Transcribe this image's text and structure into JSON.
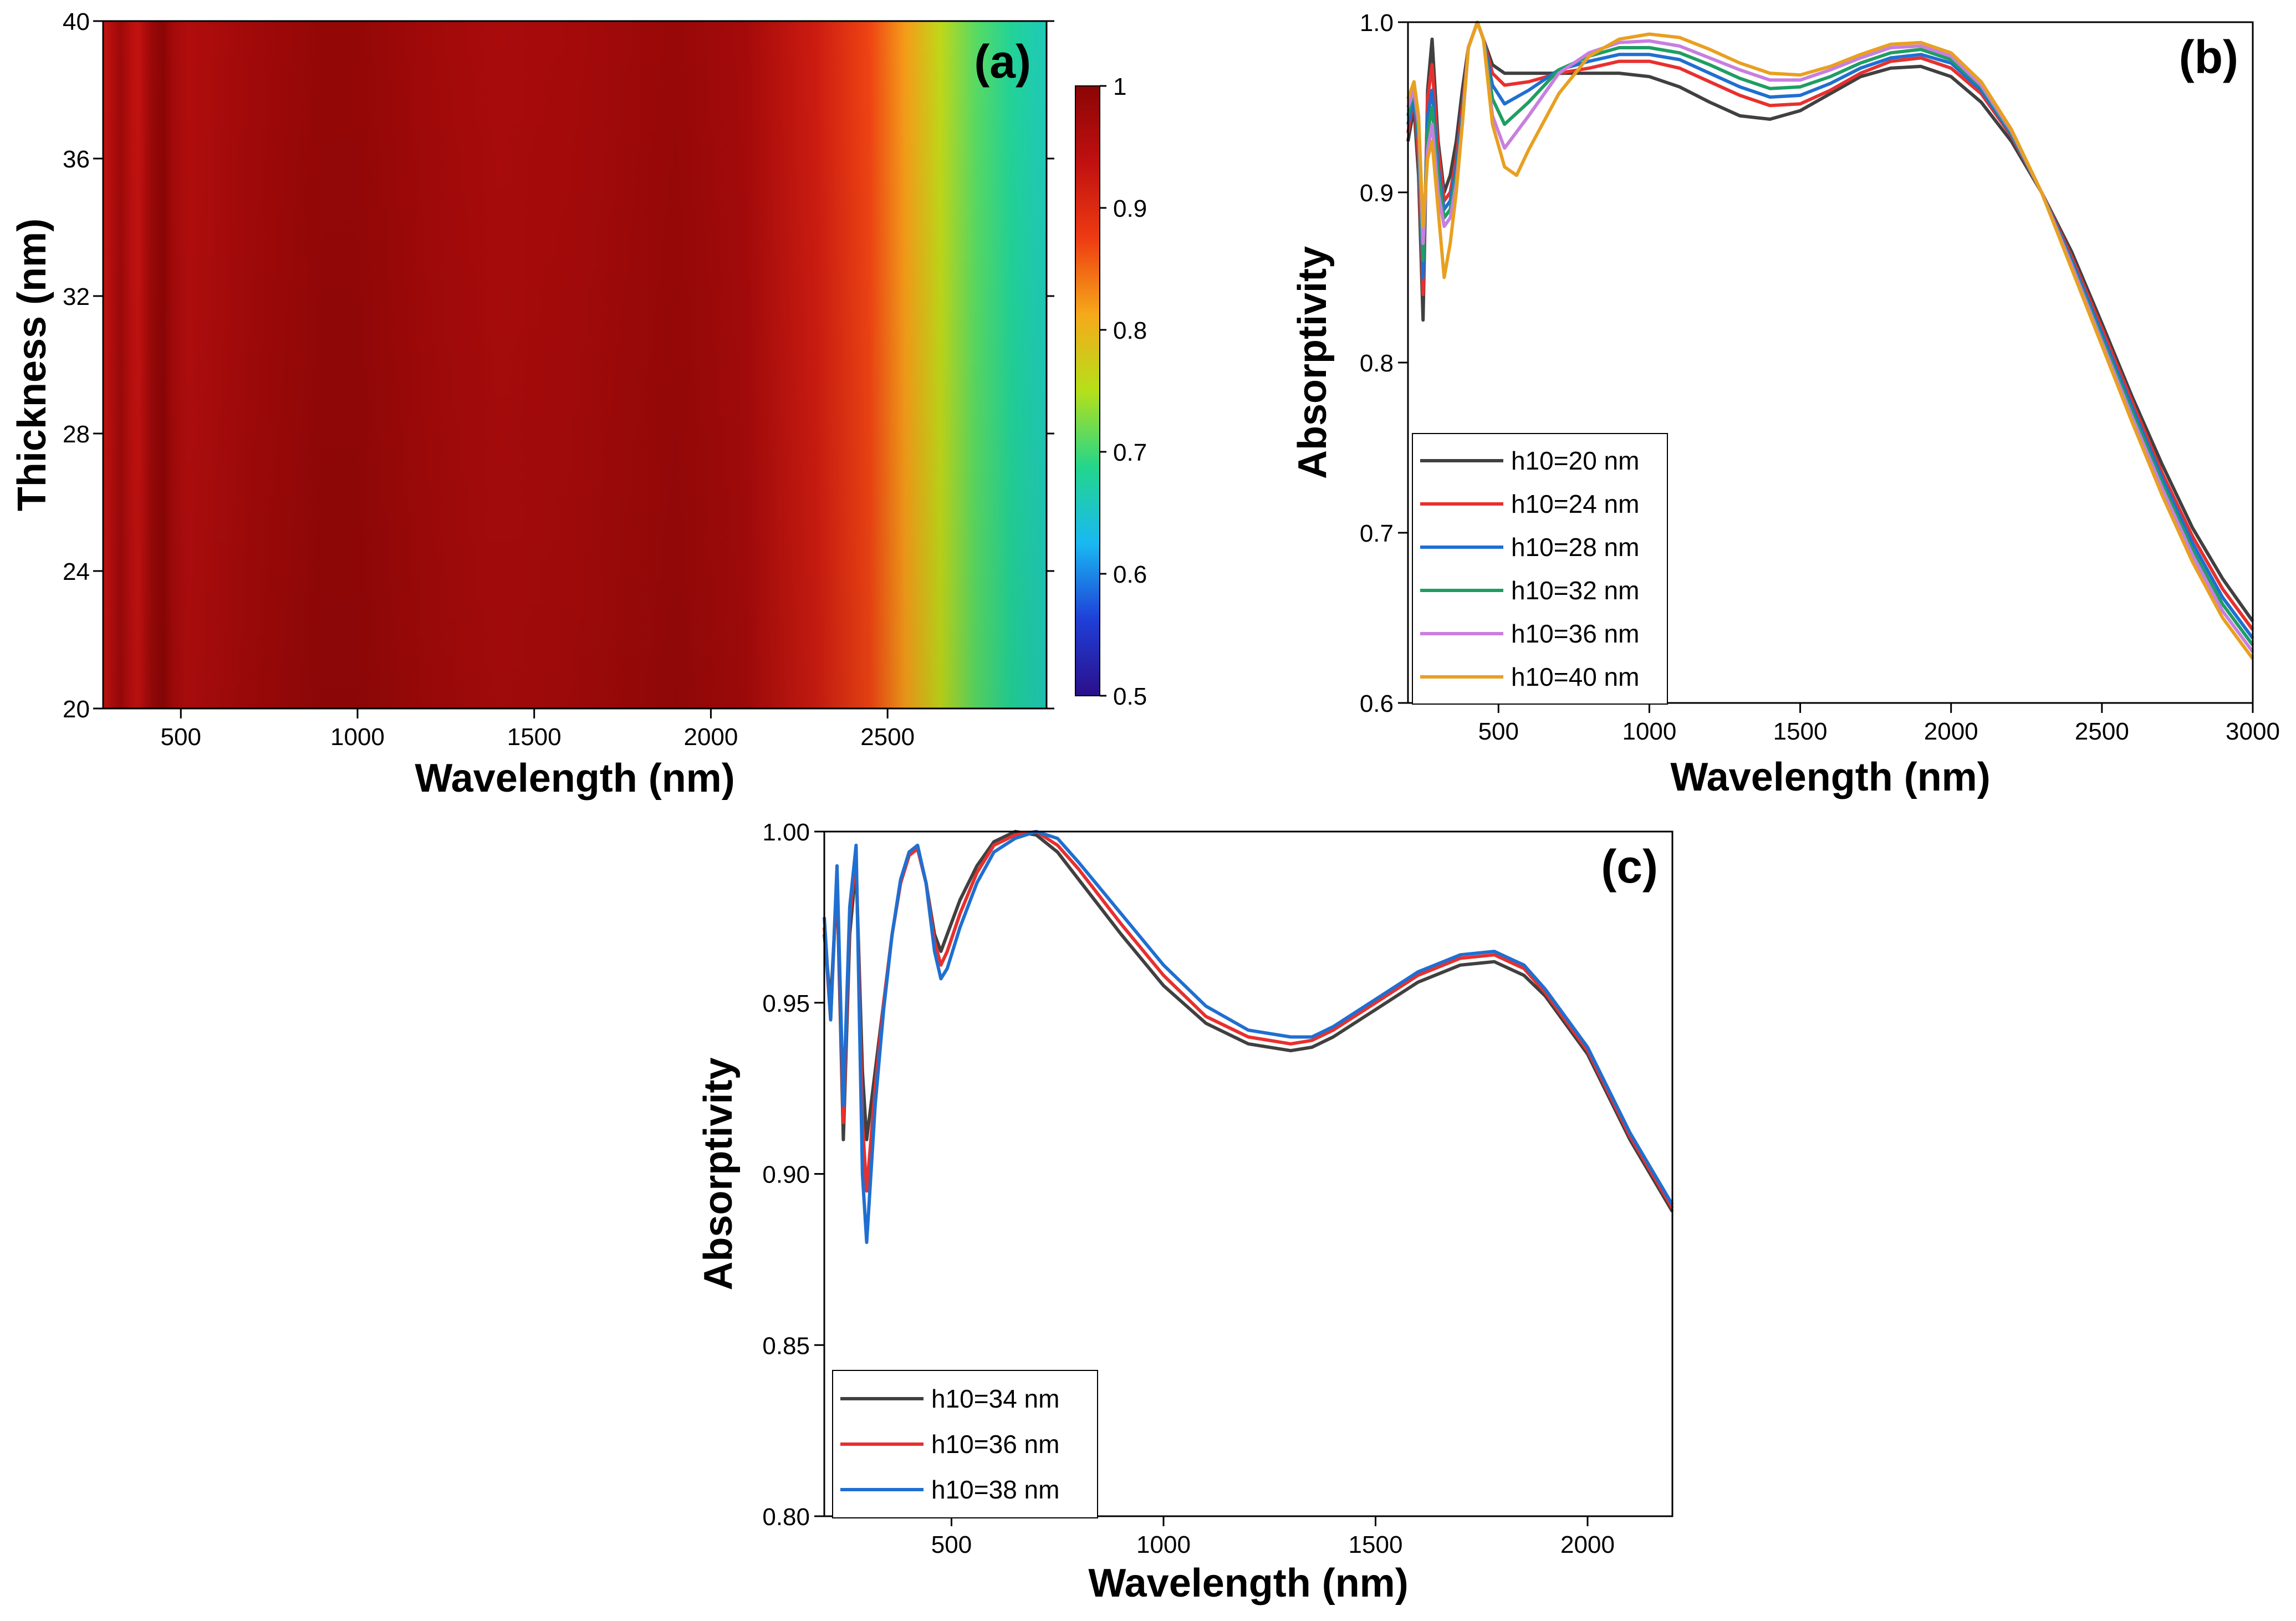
{
  "chart_data": [
    {
      "id": "a",
      "type": "heatmap",
      "panel_label": "(a)",
      "xlabel": "Wavelength (nm)",
      "ylabel": "Thickness (nm)",
      "xlim": [
        280,
        2950
      ],
      "ylim": [
        20,
        40
      ],
      "xticks": [
        500,
        1000,
        1500,
        2000,
        2500
      ],
      "yticks": [
        20,
        24,
        28,
        32,
        36,
        40
      ],
      "colorbar": {
        "range": [
          0.5,
          1
        ],
        "ticks": [
          0.5,
          0.6,
          0.7,
          0.8,
          0.9,
          1
        ],
        "tick_labels": [
          "0.5",
          "0.6",
          "0.7",
          "0.8",
          "0.9",
          "1"
        ],
        "stops": [
          "#2b0f8a",
          "#1f3fd8",
          "#19b9f2",
          "#23d68c",
          "#b6e019",
          "#f6a91a",
          "#ee3b12",
          "#c01010",
          "#8c0505"
        ]
      },
      "profile": [
        {
          "x": 280,
          "v": 0.93
        },
        {
          "x": 300,
          "v": 0.95
        },
        {
          "x": 330,
          "v": 0.98
        },
        {
          "x": 360,
          "v": 0.945
        },
        {
          "x": 380,
          "v": 0.935
        },
        {
          "x": 400,
          "v": 0.96
        },
        {
          "x": 420,
          "v": 0.985
        },
        {
          "x": 450,
          "v": 1.0
        },
        {
          "x": 480,
          "v": 0.97
        },
        {
          "x": 520,
          "v": 0.955
        },
        {
          "x": 700,
          "v": 0.975
        },
        {
          "x": 900,
          "v": 0.99
        },
        {
          "x": 1000,
          "v": 0.99
        },
        {
          "x": 1200,
          "v": 0.975
        },
        {
          "x": 1400,
          "v": 0.965
        },
        {
          "x": 1600,
          "v": 0.97
        },
        {
          "x": 1900,
          "v": 0.985
        },
        {
          "x": 2100,
          "v": 0.97
        },
        {
          "x": 2300,
          "v": 0.92
        },
        {
          "x": 2450,
          "v": 0.87
        },
        {
          "x": 2550,
          "v": 0.82
        },
        {
          "x": 2650,
          "v": 0.76
        },
        {
          "x": 2750,
          "v": 0.71
        },
        {
          "x": 2850,
          "v": 0.68
        },
        {
          "x": 2950,
          "v": 0.66
        }
      ]
    },
    {
      "id": "b",
      "type": "line",
      "panel_label": "(b)",
      "xlabel": "Wavelength (nm)",
      "ylabel": "Absorptivity",
      "xlim": [
        200,
        3000
      ],
      "ylim": [
        0.6,
        1.0
      ],
      "xticks": [
        500,
        1000,
        1500,
        2000,
        2500,
        3000
      ],
      "yticks": [
        0.6,
        0.7,
        0.8,
        0.9,
        1.0
      ],
      "ytick_labels": [
        "0.6",
        "0.7",
        "0.8",
        "0.9",
        "1.0"
      ],
      "legend_position": "lower-left",
      "series": [
        {
          "name": "h10=20 nm",
          "color": "#404040",
          "x": [
            200,
            220,
            235,
            250,
            265,
            280,
            300,
            320,
            340,
            360,
            380,
            400,
            430,
            450,
            480,
            520,
            600,
            700,
            800,
            900,
            1000,
            1100,
            1200,
            1300,
            1400,
            1500,
            1600,
            1700,
            1800,
            1900,
            2000,
            2100,
            2200,
            2300,
            2400,
            2500,
            2600,
            2700,
            2800,
            2900,
            3000
          ],
          "y": [
            0.93,
            0.95,
            0.91,
            0.825,
            0.96,
            0.99,
            0.93,
            0.9,
            0.91,
            0.93,
            0.96,
            0.985,
            1.0,
            0.99,
            0.975,
            0.97,
            0.97,
            0.97,
            0.97,
            0.97,
            0.968,
            0.962,
            0.953,
            0.945,
            0.943,
            0.948,
            0.958,
            0.968,
            0.973,
            0.974,
            0.968,
            0.953,
            0.93,
            0.9,
            0.865,
            0.823,
            0.78,
            0.74,
            0.703,
            0.673,
            0.648
          ]
        },
        {
          "name": "h10=24 nm",
          "color": "#e8302e",
          "x": [
            200,
            220,
            235,
            250,
            265,
            280,
            300,
            320,
            340,
            360,
            380,
            400,
            430,
            450,
            480,
            520,
            600,
            700,
            800,
            900,
            1000,
            1100,
            1200,
            1300,
            1400,
            1500,
            1600,
            1700,
            1800,
            1900,
            2000,
            2100,
            2200,
            2300,
            2400,
            2500,
            2600,
            2700,
            2800,
            2900,
            3000
          ],
          "y": [
            0.935,
            0.955,
            0.92,
            0.84,
            0.955,
            0.975,
            0.925,
            0.895,
            0.9,
            0.92,
            0.95,
            0.985,
            1.0,
            0.99,
            0.97,
            0.963,
            0.965,
            0.97,
            0.973,
            0.977,
            0.977,
            0.973,
            0.965,
            0.957,
            0.951,
            0.952,
            0.96,
            0.97,
            0.977,
            0.979,
            0.973,
            0.958,
            0.933,
            0.9,
            0.862,
            0.82,
            0.777,
            0.735,
            0.698,
            0.667,
            0.643
          ]
        },
        {
          "name": "h10=28 nm",
          "color": "#1f6fd1",
          "x": [
            200,
            220,
            235,
            250,
            265,
            280,
            300,
            320,
            340,
            360,
            380,
            400,
            430,
            450,
            480,
            520,
            600,
            700,
            800,
            900,
            1000,
            1100,
            1200,
            1300,
            1400,
            1500,
            1600,
            1700,
            1800,
            1900,
            2000,
            2100,
            2200,
            2300,
            2400,
            2500,
            2600,
            2700,
            2800,
            2900,
            3000
          ],
          "y": [
            0.94,
            0.955,
            0.93,
            0.85,
            0.945,
            0.96,
            0.915,
            0.89,
            0.895,
            0.915,
            0.945,
            0.985,
            1.0,
            0.99,
            0.963,
            0.952,
            0.96,
            0.972,
            0.977,
            0.981,
            0.981,
            0.978,
            0.97,
            0.962,
            0.956,
            0.957,
            0.964,
            0.973,
            0.979,
            0.981,
            0.976,
            0.96,
            0.934,
            0.9,
            0.86,
            0.817,
            0.774,
            0.732,
            0.694,
            0.662,
            0.638
          ]
        },
        {
          "name": "h10=32 nm",
          "color": "#1f9e62",
          "x": [
            200,
            220,
            235,
            250,
            265,
            280,
            300,
            320,
            340,
            360,
            380,
            400,
            430,
            450,
            480,
            520,
            600,
            700,
            800,
            900,
            1000,
            1100,
            1200,
            1300,
            1400,
            1500,
            1600,
            1700,
            1800,
            1900,
            2000,
            2100,
            2200,
            2300,
            2400,
            2500,
            2600,
            2700,
            2800,
            2900,
            3000
          ],
          "y": [
            0.945,
            0.96,
            0.935,
            0.86,
            0.935,
            0.95,
            0.91,
            0.885,
            0.89,
            0.91,
            0.94,
            0.985,
            1.0,
            0.99,
            0.955,
            0.94,
            0.953,
            0.972,
            0.98,
            0.985,
            0.985,
            0.982,
            0.975,
            0.967,
            0.961,
            0.962,
            0.968,
            0.976,
            0.982,
            0.984,
            0.978,
            0.962,
            0.935,
            0.9,
            0.858,
            0.814,
            0.771,
            0.729,
            0.69,
            0.658,
            0.634
          ]
        },
        {
          "name": "h10=36 nm",
          "color": "#c77fe0",
          "x": [
            200,
            220,
            235,
            250,
            265,
            280,
            300,
            320,
            340,
            360,
            380,
            400,
            430,
            450,
            480,
            520,
            600,
            700,
            800,
            900,
            1000,
            1100,
            1200,
            1300,
            1400,
            1500,
            1600,
            1700,
            1800,
            1900,
            2000,
            2100,
            2200,
            2300,
            2400,
            2500,
            2600,
            2700,
            2800,
            2900,
            3000
          ],
          "y": [
            0.95,
            0.96,
            0.94,
            0.87,
            0.925,
            0.94,
            0.9,
            0.88,
            0.885,
            0.905,
            0.94,
            0.985,
            1.0,
            0.99,
            0.945,
            0.926,
            0.945,
            0.97,
            0.982,
            0.988,
            0.989,
            0.986,
            0.979,
            0.972,
            0.966,
            0.966,
            0.972,
            0.979,
            0.985,
            0.986,
            0.98,
            0.963,
            0.936,
            0.9,
            0.857,
            0.812,
            0.768,
            0.726,
            0.687,
            0.654,
            0.63
          ]
        },
        {
          "name": "h10=40 nm",
          "color": "#e8a020",
          "x": [
            200,
            220,
            235,
            250,
            265,
            280,
            300,
            320,
            340,
            360,
            380,
            400,
            430,
            450,
            480,
            520,
            560,
            600,
            700,
            800,
            900,
            1000,
            1100,
            1200,
            1300,
            1400,
            1500,
            1600,
            1700,
            1800,
            1900,
            2000,
            2100,
            2200,
            2300,
            2400,
            2500,
            2600,
            2700,
            2800,
            2900,
            3000
          ],
          "y": [
            0.955,
            0.965,
            0.945,
            0.88,
            0.92,
            0.93,
            0.89,
            0.85,
            0.87,
            0.9,
            0.94,
            0.985,
            1.0,
            0.99,
            0.94,
            0.915,
            0.91,
            0.925,
            0.958,
            0.98,
            0.99,
            0.993,
            0.991,
            0.984,
            0.976,
            0.97,
            0.969,
            0.974,
            0.981,
            0.987,
            0.988,
            0.982,
            0.965,
            0.937,
            0.9,
            0.855,
            0.81,
            0.765,
            0.722,
            0.683,
            0.65,
            0.626
          ]
        }
      ]
    },
    {
      "id": "c",
      "type": "line",
      "panel_label": "(c)",
      "xlabel": "Wavelength (nm)",
      "ylabel": "Absorptivity",
      "xlim": [
        200,
        2200
      ],
      "ylim": [
        0.8,
        1.0
      ],
      "xticks": [
        500,
        1000,
        1500,
        2000
      ],
      "yticks": [
        0.8,
        0.85,
        0.9,
        0.95,
        1.0
      ],
      "ytick_labels": [
        "0.80",
        "0.85",
        "0.90",
        "0.95",
        "1.00"
      ],
      "legend_position": "lower-left",
      "series": [
        {
          "name": "h10=34 nm",
          "color": "#404040",
          "x": [
            200,
            215,
            230,
            245,
            260,
            275,
            290,
            300,
            320,
            340,
            360,
            380,
            400,
            420,
            440,
            460,
            475,
            490,
            520,
            560,
            600,
            650,
            700,
            750,
            800,
            900,
            1000,
            1100,
            1200,
            1300,
            1350,
            1400,
            1500,
            1600,
            1700,
            1780,
            1850,
            1900,
            2000,
            2100,
            2200
          ],
          "y": [
            0.97,
            0.95,
            0.985,
            0.91,
            0.97,
            0.99,
            0.93,
            0.91,
            0.93,
            0.95,
            0.97,
            0.985,
            0.993,
            0.995,
            0.985,
            0.97,
            0.965,
            0.97,
            0.98,
            0.99,
            0.997,
            1.0,
            0.999,
            0.994,
            0.986,
            0.97,
            0.955,
            0.944,
            0.938,
            0.936,
            0.937,
            0.94,
            0.948,
            0.956,
            0.961,
            0.962,
            0.958,
            0.952,
            0.935,
            0.91,
            0.889
          ]
        },
        {
          "name": "h10=36 nm",
          "color": "#e8302e",
          "x": [
            200,
            215,
            230,
            245,
            260,
            275,
            290,
            300,
            320,
            340,
            360,
            380,
            400,
            420,
            440,
            460,
            475,
            490,
            520,
            560,
            600,
            650,
            700,
            750,
            800,
            900,
            1000,
            1100,
            1200,
            1300,
            1350,
            1400,
            1500,
            1600,
            1700,
            1780,
            1850,
            1900,
            2000,
            2100,
            2200
          ],
          "y": [
            0.972,
            0.945,
            0.988,
            0.915,
            0.975,
            0.993,
            0.915,
            0.895,
            0.925,
            0.95,
            0.97,
            0.985,
            0.993,
            0.995,
            0.985,
            0.968,
            0.961,
            0.965,
            0.976,
            0.988,
            0.996,
            0.999,
            1.0,
            0.996,
            0.989,
            0.973,
            0.958,
            0.946,
            0.94,
            0.938,
            0.939,
            0.942,
            0.95,
            0.958,
            0.963,
            0.964,
            0.96,
            0.953,
            0.936,
            0.911,
            0.89
          ]
        },
        {
          "name": "h10=38 nm",
          "color": "#1f6fd1",
          "x": [
            200,
            215,
            230,
            245,
            260,
            275,
            290,
            300,
            320,
            340,
            360,
            380,
            400,
            420,
            440,
            460,
            475,
            490,
            520,
            560,
            600,
            650,
            700,
            750,
            800,
            900,
            1000,
            1100,
            1200,
            1300,
            1350,
            1400,
            1500,
            1600,
            1700,
            1780,
            1850,
            1900,
            2000,
            2100,
            2200
          ],
          "y": [
            0.975,
            0.945,
            0.99,
            0.92,
            0.978,
            0.996,
            0.9,
            0.88,
            0.92,
            0.948,
            0.97,
            0.986,
            0.994,
            0.996,
            0.985,
            0.965,
            0.957,
            0.96,
            0.972,
            0.985,
            0.994,
            0.998,
            1.0,
            0.998,
            0.991,
            0.976,
            0.961,
            0.949,
            0.942,
            0.94,
            0.94,
            0.943,
            0.951,
            0.959,
            0.964,
            0.965,
            0.961,
            0.954,
            0.937,
            0.912,
            0.891
          ]
        }
      ]
    }
  ]
}
